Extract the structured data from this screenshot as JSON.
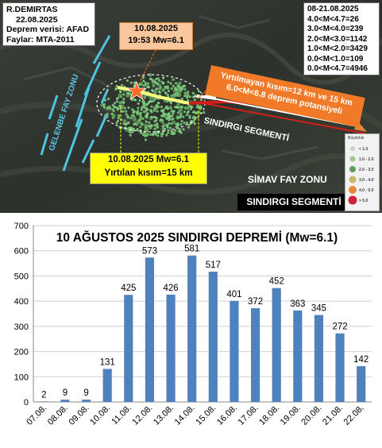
{
  "map": {
    "author": "R.DEMIRTAS",
    "date": "22.08.2025",
    "data_source": "Deprem verisi: AFAD",
    "faults_source": "Faylar: MTA-2011",
    "stats": {
      "period": "08-21.08.2025",
      "rows": [
        "4.0<M<4.7=26",
        "3.0<M<4.0=239",
        "2.0<M<3.0=1142",
        "1.0<M<2.0=3429",
        "0.0<M<1.0=109",
        "0.0<M<4.7=4946"
      ]
    },
    "main_shock": {
      "date": "10.08.2025",
      "time_mag": "19:53 Mw=6.1"
    },
    "rupture": {
      "line1": "10.08.2025 Mw=6.1",
      "line2": "Yırtılan kısım=15 km"
    },
    "unruptured": {
      "line1": "Yırtılmayan kısım=12 km ve 15 km",
      "line2": "6.0<M<6.8 deprem potansiyeli"
    },
    "sindirgi_segment_map": "SINDIRGI SEGMENTİ",
    "gelenbe": "GELENBE FAY ZONU",
    "simav": "SİMAV FAY ZONU",
    "sindirgi_segment_box": "SINDIRGI SEGMENTİ",
    "legend": {
      "title": "Büyüklük",
      "items": [
        {
          "label": "< 1.0",
          "color": "#c9d3c2"
        },
        {
          "label": "1.0 - 2.0",
          "color": "#a8c490"
        },
        {
          "label": "2.0 - 3.0",
          "color": "#5f9e5a"
        },
        {
          "label": "3.0 - 4.0",
          "color": "#c9b66a"
        },
        {
          "label": "4.0 - 5.0",
          "color": "#e8863a"
        },
        {
          "label": "> 5.0",
          "color": "#d0203a"
        }
      ]
    }
  },
  "colors": {
    "bar": "#4f81bd",
    "unruptured_box": "#f07a28",
    "rupture_box": "#ffff00",
    "main_shock_box": "#f9c79b",
    "cluster": "#7ecf7e",
    "fault": "#4fc3e0",
    "fault_red": "#d0201a"
  },
  "chart_data": {
    "type": "bar",
    "title": "10 AĞUSTOS 2025 SINDIRGI DEPREMİ (Mw=6.1)",
    "categories": [
      "07.08.",
      "08.08.",
      "09.08.",
      "10.08.",
      "11.08.",
      "12.08.",
      "13.08.",
      "14.08.",
      "15.08.",
      "16.08.",
      "17.08.",
      "18.08.",
      "19.08.",
      "20.08.",
      "21.08.",
      "22.08."
    ],
    "values": [
      2,
      9,
      9,
      131,
      425,
      573,
      426,
      581,
      517,
      401,
      372,
      452,
      363,
      345,
      272,
      142
    ],
    "ylim": [
      0,
      700
    ],
    "yticks": [
      0,
      100,
      200,
      300,
      400,
      500,
      600,
      700
    ],
    "xlabel": "",
    "ylabel": ""
  }
}
